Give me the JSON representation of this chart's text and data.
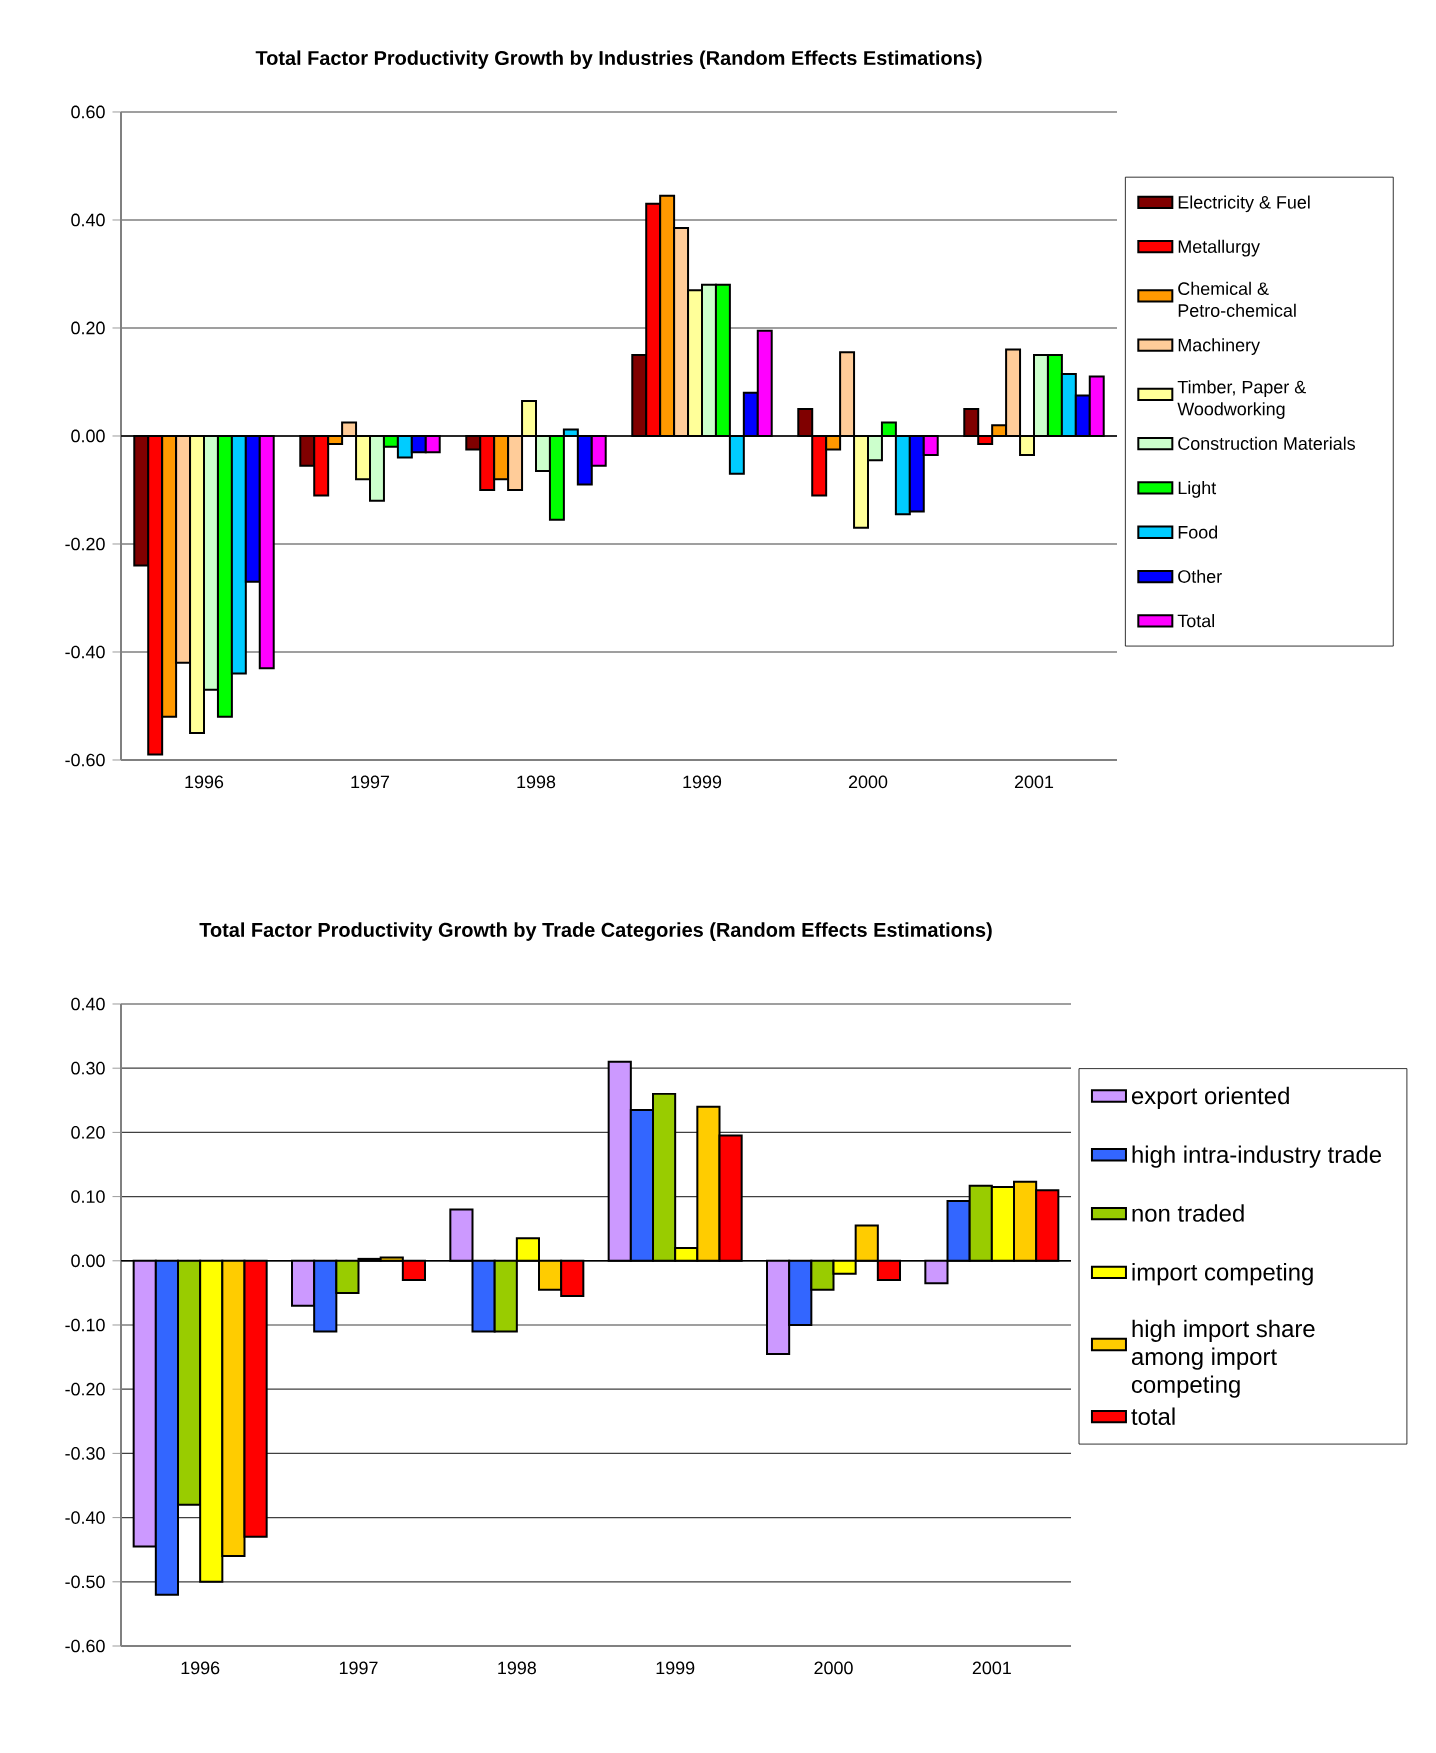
{
  "chart_data": [
    {
      "type": "bar",
      "title": "Total Factor Productivity Growth by Industries (Random Effects Estimations)",
      "categories": [
        "1996",
        "1997",
        "1998",
        "1999",
        "2000",
        "2001"
      ],
      "ylim": [
        -0.6,
        0.6
      ],
      "yticks": [
        {
          "value": -0.6,
          "label": "-0.60"
        },
        {
          "value": -0.4,
          "label": "-0.40"
        },
        {
          "value": -0.2,
          "label": "-0.20"
        },
        {
          "value": 0,
          "label": "0.00"
        },
        {
          "value": 0.2,
          "label": "0.20"
        },
        {
          "value": 0.4,
          "label": "0.40"
        },
        {
          "value": 0.6,
          "label": "0.60"
        }
      ],
      "grid": "y",
      "legend": "right",
      "series": [
        {
          "name": "Electricity & Fuel",
          "color": "#800000",
          "values": [
            -0.24,
            -0.055,
            -0.025,
            0.15,
            0.05,
            0.05
          ]
        },
        {
          "name": "Metallurgy",
          "color": "#ff0000",
          "values": [
            -0.59,
            -0.11,
            -0.1,
            0.43,
            -0.11,
            -0.015
          ]
        },
        {
          "name": "Chemical & Petro-chemical",
          "color": "#ff9900",
          "values": [
            -0.52,
            -0.015,
            -0.08,
            0.445,
            -0.025,
            0.02
          ]
        },
        {
          "name": "Machinery",
          "color": "#ffcc99",
          "values": [
            -0.42,
            0.025,
            -0.1,
            0.385,
            0.155,
            0.16
          ]
        },
        {
          "name": "Timber, Paper & Woodworking",
          "color": "#ffff99",
          "values": [
            -0.55,
            -0.08,
            0.065,
            0.27,
            -0.17,
            -0.035
          ]
        },
        {
          "name": "Construction Materials",
          "color": "#ccffcc",
          "values": [
            -0.47,
            -0.12,
            -0.065,
            0.28,
            -0.045,
            0.15
          ]
        },
        {
          "name": "Light",
          "color": "#00ff00",
          "values": [
            -0.52,
            -0.02,
            -0.155,
            0.28,
            0.025,
            0.15
          ]
        },
        {
          "name": "Food",
          "color": "#00ccff",
          "values": [
            -0.44,
            -0.04,
            0.012,
            -0.07,
            -0.145,
            0.115
          ]
        },
        {
          "name": "Other",
          "color": "#0000ff",
          "values": [
            -0.27,
            -0.03,
            -0.09,
            0.08,
            -0.14,
            0.075
          ]
        },
        {
          "name": "Total",
          "color": "#ff00ff",
          "values": [
            -0.43,
            -0.03,
            -0.055,
            0.195,
            -0.035,
            0.11
          ]
        }
      ]
    },
    {
      "type": "bar",
      "title": "Total Factor Productivity Growth by Trade Categories (Random Effects Estimations)",
      "categories": [
        "1996",
        "1997",
        "1998",
        "1999",
        "2000",
        "2001"
      ],
      "ylim": [
        -0.6,
        0.4
      ],
      "yticks": [
        {
          "value": -0.6,
          "label": "-0.60"
        },
        {
          "value": -0.5,
          "label": "-0.50"
        },
        {
          "value": -0.4,
          "label": "-0.40"
        },
        {
          "value": -0.3,
          "label": "-0.30"
        },
        {
          "value": -0.2,
          "label": "-0.20"
        },
        {
          "value": -0.1,
          "label": "-0.10"
        },
        {
          "value": 0,
          "label": "0.00"
        },
        {
          "value": 0.1,
          "label": "0.10"
        },
        {
          "value": 0.2,
          "label": "0.20"
        },
        {
          "value": 0.3,
          "label": "0.30"
        },
        {
          "value": 0.4,
          "label": "0.40"
        }
      ],
      "grid": "y",
      "legend": "right",
      "series": [
        {
          "name": "export oriented",
          "color": "#cc99ff",
          "values": [
            -0.445,
            -0.07,
            0.08,
            0.31,
            -0.145,
            -0.035
          ]
        },
        {
          "name": "high intra-industry trade",
          "color": "#3366ff",
          "values": [
            -0.52,
            -0.11,
            -0.11,
            0.235,
            -0.1,
            0.093
          ]
        },
        {
          "name": "non traded",
          "color": "#99cc00",
          "values": [
            -0.38,
            -0.05,
            -0.11,
            0.26,
            -0.045,
            0.117
          ]
        },
        {
          "name": "import competing",
          "color": "#ffff00",
          "values": [
            -0.5,
            0.003,
            0.035,
            0.02,
            -0.02,
            0.115
          ]
        },
        {
          "name": "high import share among import competing",
          "color": "#ffcc00",
          "values": [
            -0.46,
            0.005,
            -0.045,
            0.24,
            0.055,
            0.123
          ]
        },
        {
          "name": "total",
          "color": "#ff0000",
          "values": [
            -0.43,
            -0.03,
            -0.055,
            0.195,
            -0.03,
            0.11
          ]
        }
      ]
    }
  ]
}
